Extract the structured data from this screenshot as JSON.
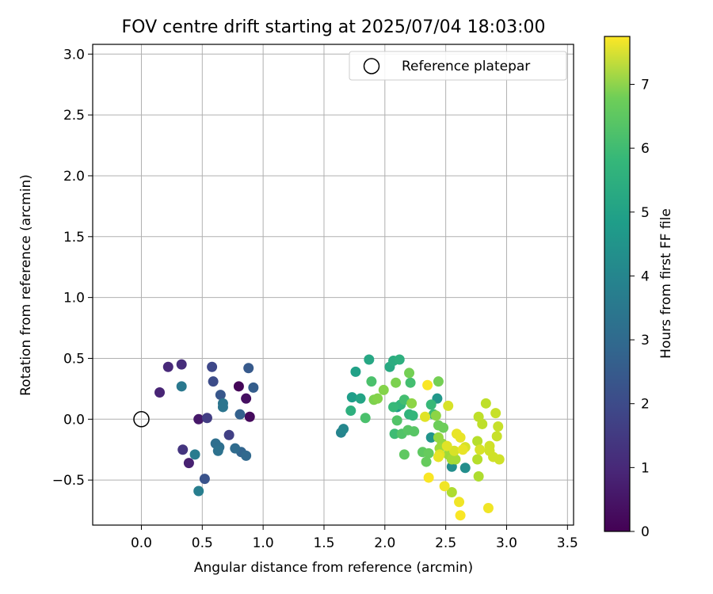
{
  "chart_data": {
    "type": "scatter",
    "title": "FOV centre drift starting at 2025/07/04 18:03:00",
    "xlabel": "Angular distance from reference (arcmin)",
    "ylabel": "Rotation from reference (arcmin)",
    "xlim": [
      -0.4,
      3.55
    ],
    "ylim": [
      -0.87,
      3.08
    ],
    "xticks": [
      "0.0",
      "0.5",
      "1.0",
      "1.5",
      "2.0",
      "2.5",
      "3.0",
      "3.5"
    ],
    "yticks": [
      "−0.5",
      "0.0",
      "0.5",
      "1.0",
      "1.5",
      "2.0",
      "2.5",
      "3.0"
    ],
    "grid": true,
    "legend": {
      "placement": "top-right",
      "entries": [
        "Reference platepar"
      ]
    },
    "reference_point": {
      "label": "Reference platepar",
      "x": 0.0,
      "y": 0.0
    },
    "colorbar": {
      "label": "Hours from first FF file",
      "colormap": "viridis",
      "range": [
        0,
        7.75
      ],
      "ticks": [
        "0",
        "1",
        "2",
        "3",
        "4",
        "5",
        "6",
        "7"
      ]
    },
    "points": [
      {
        "x": 0.8,
        "y": 0.27,
        "c": 0.1
      },
      {
        "x": 0.89,
        "y": 0.02,
        "c": 0.2
      },
      {
        "x": 0.86,
        "y": 0.17,
        "c": 0.3
      },
      {
        "x": 0.47,
        "y": 0.0,
        "c": 0.5
      },
      {
        "x": 0.39,
        "y": -0.36,
        "c": 0.7
      },
      {
        "x": 0.15,
        "y": 0.22,
        "c": 0.8
      },
      {
        "x": 0.22,
        "y": 0.43,
        "c": 0.9
      },
      {
        "x": 0.33,
        "y": 0.45,
        "c": 1.0
      },
      {
        "x": 0.34,
        "y": -0.25,
        "c": 1.2
      },
      {
        "x": 0.54,
        "y": 0.01,
        "c": 1.4
      },
      {
        "x": 0.72,
        "y": -0.13,
        "c": 1.5
      },
      {
        "x": 0.58,
        "y": 0.43,
        "c": 1.7
      },
      {
        "x": 0.59,
        "y": 0.31,
        "c": 1.8
      },
      {
        "x": 0.52,
        "y": -0.49,
        "c": 2.0
      },
      {
        "x": 0.65,
        "y": 0.2,
        "c": 2.1
      },
      {
        "x": 0.88,
        "y": 0.42,
        "c": 2.2
      },
      {
        "x": 0.92,
        "y": 0.26,
        "c": 2.3
      },
      {
        "x": 0.81,
        "y": 0.04,
        "c": 2.4
      },
      {
        "x": 0.82,
        "y": -0.27,
        "c": 2.5
      },
      {
        "x": 0.86,
        "y": -0.3,
        "c": 2.6
      },
      {
        "x": 0.77,
        "y": -0.24,
        "c": 2.7
      },
      {
        "x": 0.61,
        "y": -0.2,
        "c": 2.8
      },
      {
        "x": 0.64,
        "y": -0.23,
        "c": 2.8
      },
      {
        "x": 0.63,
        "y": -0.26,
        "c": 2.9
      },
      {
        "x": 0.67,
        "y": 0.13,
        "c": 3.0
      },
      {
        "x": 0.67,
        "y": 0.1,
        "c": 3.0
      },
      {
        "x": 0.33,
        "y": 0.27,
        "c": 3.1
      },
      {
        "x": 0.44,
        "y": -0.29,
        "c": 3.2
      },
      {
        "x": 0.47,
        "y": -0.59,
        "c": 3.3
      },
      {
        "x": 1.64,
        "y": -0.11,
        "c": 3.5
      },
      {
        "x": 1.66,
        "y": -0.08,
        "c": 3.6
      },
      {
        "x": 2.55,
        "y": -0.39,
        "c": 3.8
      },
      {
        "x": 2.66,
        "y": -0.4,
        "c": 3.8
      },
      {
        "x": 2.38,
        "y": -0.15,
        "c": 4.0
      },
      {
        "x": 2.43,
        "y": 0.17,
        "c": 4.1
      },
      {
        "x": 2.1,
        "y": 0.1,
        "c": 4.2
      },
      {
        "x": 1.73,
        "y": 0.18,
        "c": 4.3
      },
      {
        "x": 1.76,
        "y": 0.39,
        "c": 4.4
      },
      {
        "x": 1.8,
        "y": 0.17,
        "c": 4.5
      },
      {
        "x": 1.87,
        "y": 0.49,
        "c": 4.6
      },
      {
        "x": 2.04,
        "y": 0.43,
        "c": 4.7
      },
      {
        "x": 2.07,
        "y": 0.48,
        "c": 4.8
      },
      {
        "x": 2.12,
        "y": 0.49,
        "c": 4.9
      },
      {
        "x": 1.72,
        "y": 0.07,
        "c": 4.9
      },
      {
        "x": 2.2,
        "y": 0.04,
        "c": 5.0
      },
      {
        "x": 2.23,
        "y": 0.03,
        "c": 5.1
      },
      {
        "x": 2.13,
        "y": 0.12,
        "c": 5.1
      },
      {
        "x": 2.07,
        "y": 0.1,
        "c": 5.2
      },
      {
        "x": 2.38,
        "y": 0.12,
        "c": 5.2
      },
      {
        "x": 2.4,
        "y": 0.04,
        "c": 5.3
      },
      {
        "x": 2.08,
        "y": -0.12,
        "c": 5.3
      },
      {
        "x": 2.21,
        "y": 0.3,
        "c": 5.4
      },
      {
        "x": 2.16,
        "y": 0.16,
        "c": 5.4
      },
      {
        "x": 1.89,
        "y": 0.31,
        "c": 5.5
      },
      {
        "x": 1.84,
        "y": 0.01,
        "c": 5.5
      },
      {
        "x": 2.1,
        "y": -0.01,
        "c": 5.6
      },
      {
        "x": 2.14,
        "y": -0.12,
        "c": 5.6
      },
      {
        "x": 2.19,
        "y": -0.09,
        "c": 5.7
      },
      {
        "x": 2.24,
        "y": -0.1,
        "c": 5.7
      },
      {
        "x": 2.16,
        "y": -0.29,
        "c": 5.8
      },
      {
        "x": 2.31,
        "y": -0.27,
        "c": 5.8
      },
      {
        "x": 2.36,
        "y": -0.28,
        "c": 5.9
      },
      {
        "x": 2.34,
        "y": -0.35,
        "c": 5.9
      },
      {
        "x": 2.44,
        "y": -0.05,
        "c": 6.0
      },
      {
        "x": 2.48,
        "y": -0.07,
        "c": 6.0
      },
      {
        "x": 2.2,
        "y": 0.38,
        "c": 6.1
      },
      {
        "x": 2.44,
        "y": 0.31,
        "c": 6.1
      },
      {
        "x": 2.09,
        "y": 0.3,
        "c": 6.2
      },
      {
        "x": 1.91,
        "y": 0.16,
        "c": 6.2
      },
      {
        "x": 1.94,
        "y": 0.17,
        "c": 6.3
      },
      {
        "x": 1.99,
        "y": 0.24,
        "c": 6.3
      },
      {
        "x": 2.22,
        "y": 0.13,
        "c": 6.4
      },
      {
        "x": 2.42,
        "y": 0.03,
        "c": 6.4
      },
      {
        "x": 2.44,
        "y": -0.15,
        "c": 6.5
      },
      {
        "x": 2.47,
        "y": -0.2,
        "c": 6.5
      },
      {
        "x": 2.45,
        "y": -0.24,
        "c": 6.6
      },
      {
        "x": 2.52,
        "y": -0.29,
        "c": 6.6
      },
      {
        "x": 2.55,
        "y": -0.33,
        "c": 6.7
      },
      {
        "x": 2.58,
        "y": -0.33,
        "c": 6.7
      },
      {
        "x": 2.55,
        "y": -0.6,
        "c": 6.8
      },
      {
        "x": 2.77,
        "y": -0.47,
        "c": 6.8
      },
      {
        "x": 2.76,
        "y": -0.33,
        "c": 6.9
      },
      {
        "x": 2.76,
        "y": -0.18,
        "c": 6.9
      },
      {
        "x": 2.8,
        "y": -0.04,
        "c": 7.0
      },
      {
        "x": 2.77,
        "y": 0.02,
        "c": 7.0
      },
      {
        "x": 2.83,
        "y": 0.13,
        "c": 7.0
      },
      {
        "x": 2.91,
        "y": 0.05,
        "c": 7.1
      },
      {
        "x": 2.93,
        "y": -0.06,
        "c": 7.1
      },
      {
        "x": 2.92,
        "y": -0.14,
        "c": 7.1
      },
      {
        "x": 2.94,
        "y": -0.33,
        "c": 7.2
      },
      {
        "x": 2.89,
        "y": -0.31,
        "c": 7.2
      },
      {
        "x": 2.86,
        "y": -0.22,
        "c": 7.2
      },
      {
        "x": 2.86,
        "y": -0.26,
        "c": 7.2
      },
      {
        "x": 2.78,
        "y": -0.25,
        "c": 7.3
      },
      {
        "x": 2.66,
        "y": -0.23,
        "c": 7.3
      },
      {
        "x": 2.57,
        "y": -0.26,
        "c": 7.3
      },
      {
        "x": 2.52,
        "y": 0.11,
        "c": 7.3
      },
      {
        "x": 2.33,
        "y": 0.02,
        "c": 7.4
      },
      {
        "x": 2.51,
        "y": -0.22,
        "c": 7.4
      },
      {
        "x": 2.45,
        "y": -0.29,
        "c": 7.4
      },
      {
        "x": 2.44,
        "y": -0.31,
        "c": 7.5
      },
      {
        "x": 2.59,
        "y": -0.12,
        "c": 7.5
      },
      {
        "x": 2.62,
        "y": -0.15,
        "c": 7.5
      },
      {
        "x": 2.64,
        "y": -0.25,
        "c": 7.5
      },
      {
        "x": 2.61,
        "y": -0.68,
        "c": 7.6
      },
      {
        "x": 2.85,
        "y": -0.73,
        "c": 7.6
      },
      {
        "x": 2.49,
        "y": -0.55,
        "c": 7.6
      },
      {
        "x": 2.62,
        "y": -0.79,
        "c": 7.7
      },
      {
        "x": 2.36,
        "y": -0.48,
        "c": 7.7
      },
      {
        "x": 2.35,
        "y": 0.28,
        "c": 7.7
      }
    ]
  }
}
